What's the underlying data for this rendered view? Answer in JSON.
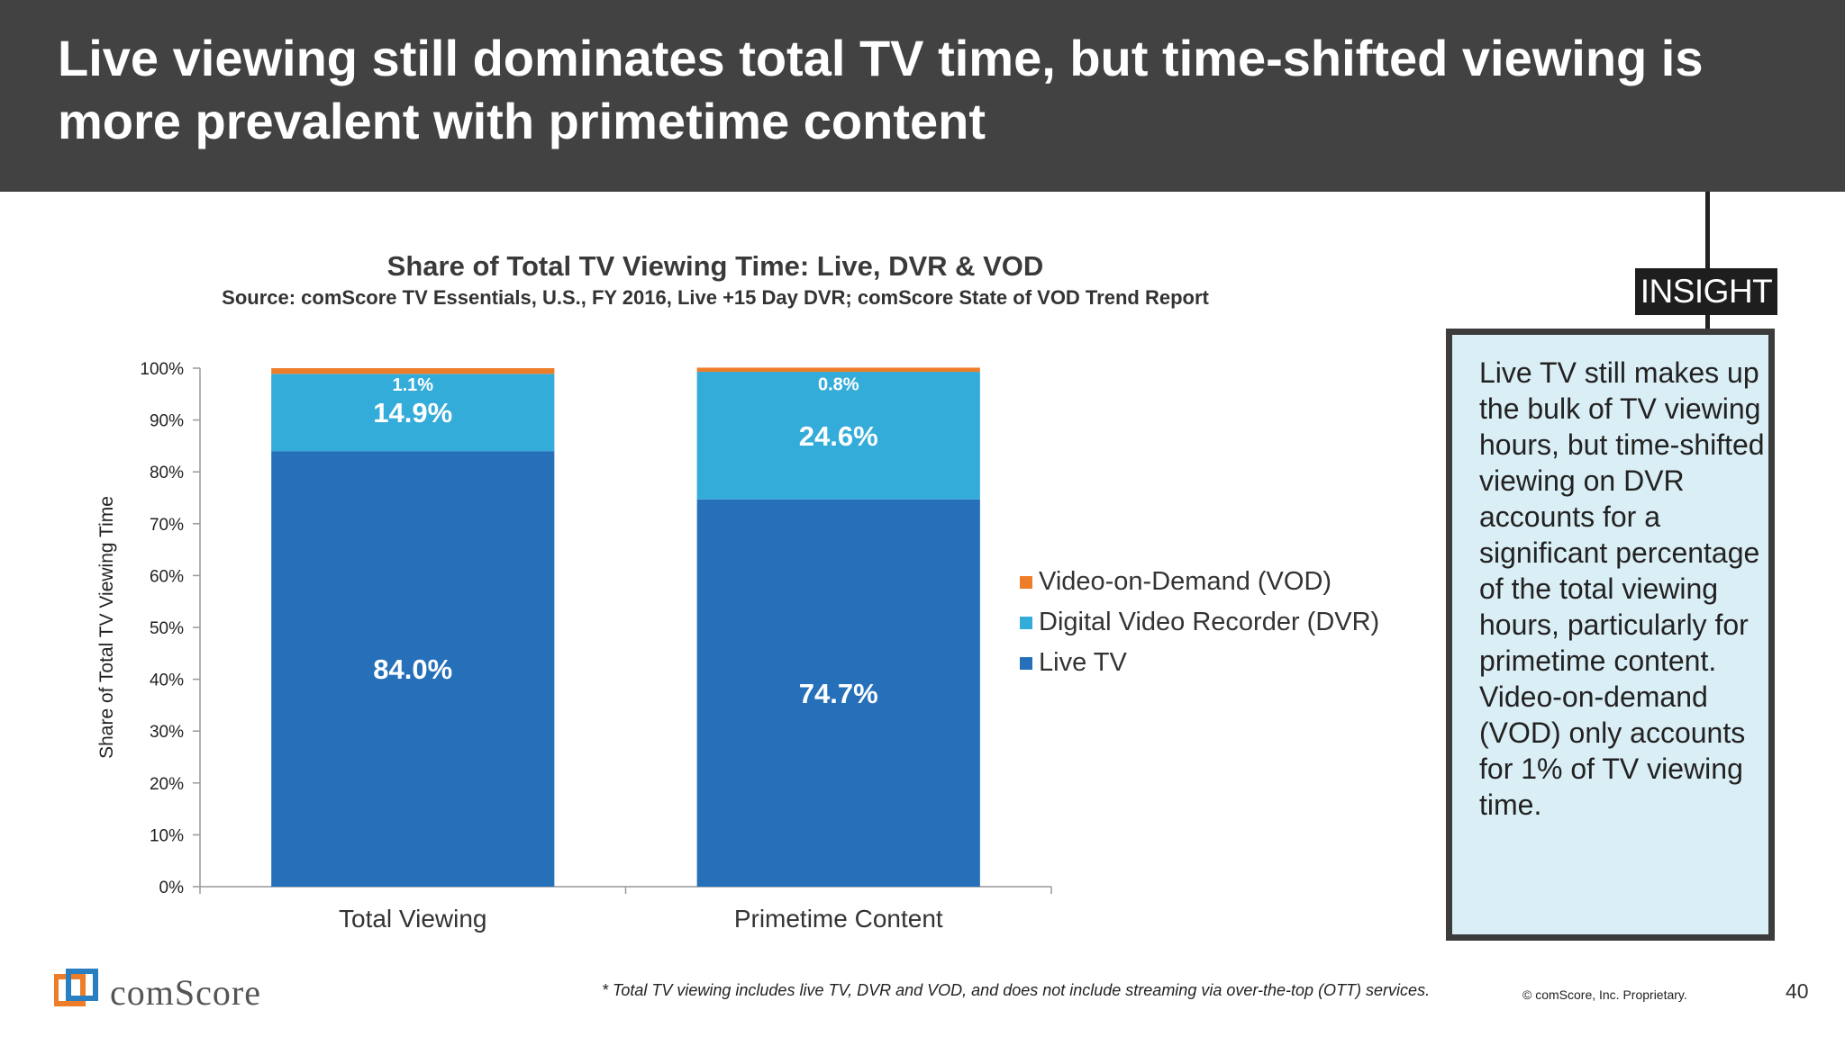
{
  "header": {
    "title": "Live viewing still dominates total TV time, but time-shifted viewing is more prevalent with primetime content"
  },
  "chart_data": {
    "type": "bar",
    "stacked": true,
    "title": "Share of Total TV Viewing Time: Live, DVR & VOD",
    "subtitle": "Source: comScore TV Essentials, U.S., FY 2016, Live +15 Day DVR; comScore State of  VOD Trend Report",
    "categories": [
      "Total Viewing",
      "Primetime Content"
    ],
    "series": [
      {
        "name": "Live TV",
        "values": [
          84.0,
          74.7
        ],
        "labels": [
          "84.0%",
          "74.7%"
        ],
        "color": "#2670ba"
      },
      {
        "name": "Digital Video Recorder (DVR)",
        "values": [
          14.9,
          24.6
        ],
        "labels": [
          "14.9%",
          "24.6%"
        ],
        "color": "#34acd9"
      },
      {
        "name": "Video-on-Demand (VOD)",
        "values": [
          1.1,
          0.8
        ],
        "labels": [
          "1.1%",
          "0.8%"
        ],
        "color": "#ee7d29"
      }
    ],
    "ylabel": "Share of Total TV Viewing Time",
    "xlabel": "",
    "ylim": [
      0,
      100
    ],
    "yticks": [
      "0%",
      "10%",
      "20%",
      "30%",
      "40%",
      "50%",
      "60%",
      "70%",
      "80%",
      "90%",
      "100%"
    ],
    "legend": {
      "placement": "right",
      "entries": [
        "Video-on-Demand (VOD)",
        "Digital Video Recorder (DVR)",
        "Live TV"
      ]
    },
    "grid": false
  },
  "insight": {
    "tag": "INSIGHT",
    "text": "Live TV still makes up the bulk of TV viewing hours, but time-shifted viewing on DVR accounts for a significant percentage of the total viewing hours, particularly for primetime content. Video-on-demand (VOD) only accounts for 1% of TV viewing time."
  },
  "footer": {
    "logo_text": "comScore",
    "logo_icon": "comscore-logo-icon",
    "footnote": "* Total TV viewing includes live TV, DVR and VOD, and does not include streaming via over-the-top (OTT) services.",
    "copyright": "© comScore, Inc. Proprietary.",
    "page_number": "40"
  }
}
